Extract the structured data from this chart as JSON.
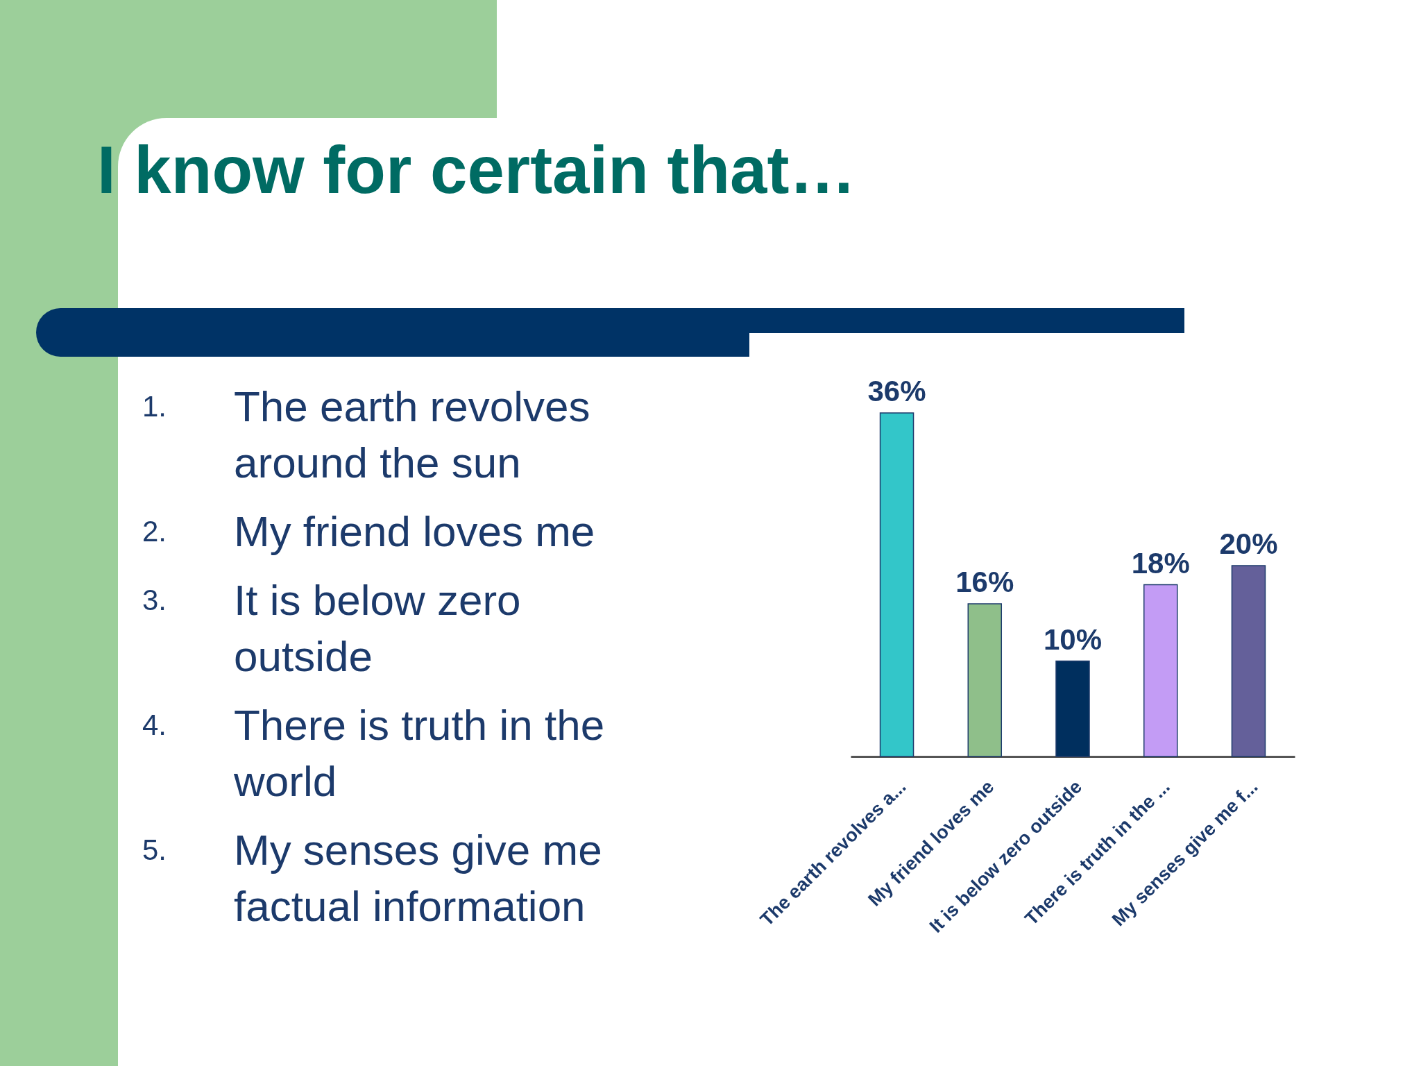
{
  "chart_data": {
    "type": "bar",
    "title": "I know for certain that…",
    "categories": [
      "The earth revolves a...",
      "My friend loves me",
      "It is below zero outside",
      "There is truth in the ...",
      "My senses give me f..."
    ],
    "values": [
      36,
      16,
      10,
      18,
      20
    ],
    "colors": [
      "#33c6c9",
      "#8fbf8a",
      "#002f5e",
      "#c39cf5",
      "#64609a"
    ],
    "value_labels": [
      "36%",
      "16%",
      "10%",
      "18%",
      "20%"
    ],
    "annotations": [
      "1. The earth revolves around the sun",
      "2. My friend loves me",
      "3. It is below zero outside",
      "4. There is truth in the world",
      "5. My senses give me factual information"
    ]
  }
}
